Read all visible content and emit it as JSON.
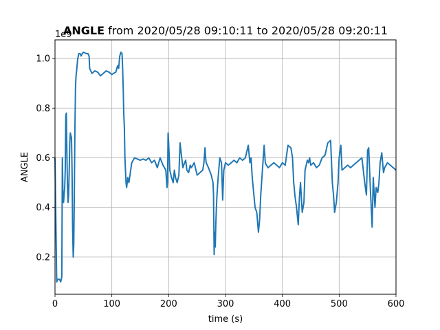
{
  "chart_data": {
    "type": "line",
    "title_bold": "ANGLE",
    "title_rest": " from 2020/05/28 09:10:11 to 2020/05/28 09:20:11",
    "xlabel": "time (s)",
    "ylabel": "ANGLE",
    "offset_text": "1e9",
    "xlim": [
      0,
      600
    ],
    "ylim": [
      0.05,
      1.075
    ],
    "xticks": [
      0,
      100,
      200,
      300,
      400,
      500,
      600
    ],
    "yticks": [
      0.2,
      0.4,
      0.6,
      0.8,
      1.0
    ],
    "ytick_labels": [
      "0.2",
      "0.4",
      "0.6",
      "0.8",
      "1.0"
    ],
    "grid": true,
    "line_color": "#1f77b4",
    "series": [
      {
        "x": [
          0,
          3,
          5,
          8,
          10,
          12,
          13,
          14,
          15,
          17,
          18,
          19,
          20,
          21,
          22,
          23,
          24,
          25,
          26,
          27,
          28,
          29,
          30,
          31,
          32,
          33,
          34,
          35,
          36,
          37,
          38,
          40,
          42,
          44,
          46,
          48,
          50,
          55,
          58,
          60,
          61,
          65,
          70,
          75,
          80,
          85,
          90,
          95,
          100,
          103,
          107,
          110,
          112,
          114,
          116,
          118,
          119,
          120,
          121,
          122,
          123,
          124,
          125,
          126,
          127,
          128,
          129,
          130,
          132,
          135,
          140,
          145,
          150,
          155,
          160,
          165,
          170,
          175,
          180,
          185,
          190,
          195,
          197,
          198,
          199,
          200,
          201,
          202,
          205,
          208,
          210,
          212,
          215,
          218,
          220,
          222,
          225,
          228,
          230,
          232,
          235,
          238,
          240,
          245,
          250,
          255,
          260,
          262,
          264,
          265,
          266,
          270,
          275,
          278,
          279,
          280,
          281,
          282,
          283,
          284,
          285,
          287,
          290,
          293,
          295,
          297,
          300,
          305,
          310,
          315,
          320,
          325,
          330,
          335,
          340,
          343,
          345,
          347,
          350,
          352,
          355,
          358,
          360,
          362,
          365,
          368,
          370,
          372,
          375,
          380,
          385,
          390,
          395,
          400,
          405,
          410,
          415,
          418,
          420,
          422,
          425,
          428,
          430,
          432,
          435,
          438,
          440,
          442,
          444,
          446,
          448,
          450,
          455,
          460,
          465,
          470,
          475,
          480,
          485,
          488,
          490,
          492,
          495,
          498,
          500,
          503,
          505,
          510,
          515,
          520,
          525,
          530,
          535,
          540,
          545,
          548,
          550,
          552,
          555,
          558,
          560,
          563,
          565,
          568,
          570,
          572,
          575,
          578,
          580,
          585,
          590,
          595,
          600
        ],
        "y": [
          0.6,
          0.1,
          0.11,
          0.11,
          0.1,
          0.12,
          0.6,
          0.45,
          0.42,
          0.48,
          0.55,
          0.77,
          0.78,
          0.6,
          0.48,
          0.42,
          0.45,
          0.55,
          0.66,
          0.7,
          0.69,
          0.68,
          0.55,
          0.32,
          0.2,
          0.25,
          0.45,
          0.7,
          0.88,
          0.93,
          0.95,
          1.0,
          1.02,
          1.02,
          1.01,
          1.02,
          1.025,
          1.02,
          1.02,
          1.01,
          0.96,
          0.94,
          0.95,
          0.945,
          0.93,
          0.94,
          0.95,
          0.945,
          0.935,
          0.94,
          0.945,
          0.97,
          0.96,
          1.01,
          1.025,
          1.02,
          0.96,
          0.88,
          0.78,
          0.72,
          0.6,
          0.55,
          0.5,
          0.48,
          0.5,
          0.52,
          0.51,
          0.5,
          0.53,
          0.58,
          0.6,
          0.595,
          0.59,
          0.595,
          0.59,
          0.6,
          0.58,
          0.59,
          0.56,
          0.6,
          0.57,
          0.55,
          0.48,
          0.5,
          0.7,
          0.66,
          0.6,
          0.55,
          0.52,
          0.5,
          0.55,
          0.52,
          0.5,
          0.53,
          0.66,
          0.62,
          0.56,
          0.58,
          0.59,
          0.55,
          0.54,
          0.57,
          0.56,
          0.58,
          0.53,
          0.54,
          0.55,
          0.58,
          0.64,
          0.6,
          0.58,
          0.56,
          0.53,
          0.5,
          0.45,
          0.21,
          0.3,
          0.24,
          0.33,
          0.4,
          0.45,
          0.52,
          0.6,
          0.58,
          0.43,
          0.55,
          0.58,
          0.57,
          0.58,
          0.59,
          0.58,
          0.6,
          0.59,
          0.6,
          0.65,
          0.58,
          0.6,
          0.52,
          0.45,
          0.4,
          0.38,
          0.3,
          0.35,
          0.45,
          0.55,
          0.65,
          0.58,
          0.57,
          0.56,
          0.57,
          0.58,
          0.57,
          0.56,
          0.58,
          0.57,
          0.65,
          0.64,
          0.6,
          0.5,
          0.45,
          0.4,
          0.33,
          0.44,
          0.5,
          0.38,
          0.42,
          0.55,
          0.57,
          0.59,
          0.58,
          0.6,
          0.57,
          0.58,
          0.56,
          0.57,
          0.6,
          0.61,
          0.66,
          0.67,
          0.5,
          0.45,
          0.38,
          0.42,
          0.5,
          0.6,
          0.65,
          0.55,
          0.56,
          0.57,
          0.56,
          0.57,
          0.58,
          0.59,
          0.6,
          0.5,
          0.45,
          0.63,
          0.64,
          0.47,
          0.32,
          0.52,
          0.4,
          0.48,
          0.46,
          0.5,
          0.58,
          0.62,
          0.54,
          0.56,
          0.58,
          0.57,
          0.56,
          0.55
        ]
      }
    ]
  }
}
